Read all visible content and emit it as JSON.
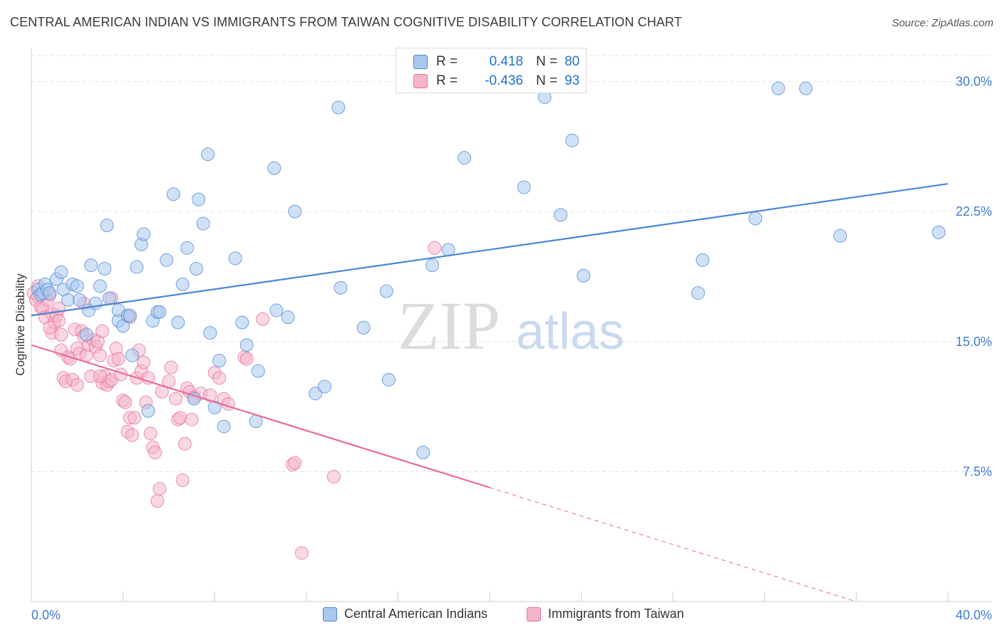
{
  "title": "CENTRAL AMERICAN INDIAN VS IMMIGRANTS FROM TAIWAN COGNITIVE DISABILITY CORRELATION CHART",
  "source": "Source: ZipAtlas.com",
  "watermark": {
    "zip": "ZIP",
    "atlas": "atlas"
  },
  "stats": {
    "r_label": "R =",
    "n_label": "N =",
    "blue": {
      "r": "0.418",
      "n": "80"
    },
    "pink": {
      "r": "-0.436",
      "n": "93"
    }
  },
  "colors": {
    "blue": "#4a86d4",
    "blue_fill": "#aac8ee",
    "pink": "#e86c9a",
    "pink_fill": "#f4b6cc",
    "tick_text": "#3f7bd0",
    "grid": "#e3e3e3"
  },
  "chart_data": {
    "type": "scatter",
    "title": "CENTRAL AMERICAN INDIAN VS IMMIGRANTS FROM TAIWAN COGNITIVE DISABILITY CORRELATION CHART",
    "xlabel": "",
    "ylabel": "Cognitive Disability",
    "xlim": [
      0,
      40
    ],
    "ylim": [
      0,
      31.5
    ],
    "x_tick_labels": [
      "0.0%",
      "40.0%"
    ],
    "y_ticks": [
      7.5,
      15.0,
      22.5,
      30.0
    ],
    "y_tick_labels": [
      "7.5%",
      "15.0%",
      "22.5%",
      "30.0%"
    ],
    "grid": true,
    "legend_position": "bottom",
    "series": [
      {
        "name": "Central American Indians",
        "color": "#4a86d4",
        "trend": {
          "x0": 0,
          "y0": 16.5,
          "x1": 40,
          "y1": 24.1,
          "dashed_from": null
        },
        "points": [
          [
            0.3,
            18.0
          ],
          [
            0.4,
            17.7
          ],
          [
            0.5,
            17.8
          ],
          [
            0.6,
            18.3
          ],
          [
            0.7,
            18.0
          ],
          [
            0.8,
            17.8
          ],
          [
            1.1,
            18.6
          ],
          [
            1.3,
            19.0
          ],
          [
            1.4,
            18.0
          ],
          [
            1.6,
            17.4
          ],
          [
            1.8,
            18.3
          ],
          [
            2.0,
            18.2
          ],
          [
            2.1,
            17.4
          ],
          [
            2.4,
            15.4
          ],
          [
            2.5,
            16.8
          ],
          [
            2.6,
            19.4
          ],
          [
            2.8,
            17.2
          ],
          [
            3.0,
            18.2
          ],
          [
            3.2,
            19.2
          ],
          [
            3.4,
            17.5
          ],
          [
            3.3,
            21.7
          ],
          [
            3.8,
            16.2
          ],
          [
            3.8,
            16.8
          ],
          [
            4.0,
            15.9
          ],
          [
            4.2,
            16.5
          ],
          [
            4.3,
            16.5
          ],
          [
            4.4,
            14.2
          ],
          [
            4.6,
            19.3
          ],
          [
            4.8,
            20.6
          ],
          [
            4.9,
            21.2
          ],
          [
            5.1,
            11.0
          ],
          [
            5.3,
            16.2
          ],
          [
            5.5,
            16.7
          ],
          [
            5.6,
            16.7
          ],
          [
            5.9,
            19.7
          ],
          [
            6.2,
            23.5
          ],
          [
            6.4,
            16.1
          ],
          [
            6.6,
            18.3
          ],
          [
            6.8,
            20.4
          ],
          [
            7.1,
            11.7
          ],
          [
            7.2,
            19.2
          ],
          [
            7.3,
            23.2
          ],
          [
            7.5,
            21.8
          ],
          [
            7.7,
            25.8
          ],
          [
            7.8,
            15.5
          ],
          [
            8.0,
            11.2
          ],
          [
            8.2,
            13.9
          ],
          [
            8.4,
            10.1
          ],
          [
            8.9,
            19.8
          ],
          [
            9.2,
            16.1
          ],
          [
            9.4,
            14.8
          ],
          [
            9.9,
            13.3
          ],
          [
            9.8,
            10.4
          ],
          [
            10.6,
            25.0
          ],
          [
            10.7,
            16.8
          ],
          [
            11.2,
            16.4
          ],
          [
            11.5,
            22.5
          ],
          [
            12.4,
            12.0
          ],
          [
            12.8,
            12.4
          ],
          [
            13.4,
            28.5
          ],
          [
            13.5,
            18.1
          ],
          [
            14.5,
            15.8
          ],
          [
            15.5,
            17.9
          ],
          [
            15.6,
            12.8
          ],
          [
            17.1,
            8.6
          ],
          [
            17.5,
            19.4
          ],
          [
            18.2,
            20.3
          ],
          [
            18.9,
            25.6
          ],
          [
            21.5,
            23.9
          ],
          [
            22.4,
            29.1
          ],
          [
            23.1,
            22.3
          ],
          [
            23.6,
            26.6
          ],
          [
            24.1,
            18.8
          ],
          [
            29.1,
            17.8
          ],
          [
            29.3,
            19.7
          ],
          [
            31.6,
            22.1
          ],
          [
            32.6,
            29.6
          ],
          [
            33.8,
            29.6
          ],
          [
            35.3,
            21.1
          ],
          [
            39.6,
            21.3
          ]
        ]
      },
      {
        "name": "Immigrants from Taiwan",
        "color": "#e86c9a",
        "trend": {
          "x0": 0,
          "y0": 14.8,
          "x1": 36,
          "y1": 0.0,
          "dashed_from": 20
        },
        "points": [
          [
            0.1,
            17.8
          ],
          [
            0.2,
            17.4
          ],
          [
            0.3,
            17.6
          ],
          [
            0.3,
            18.2
          ],
          [
            0.4,
            17.0
          ],
          [
            0.5,
            16.9
          ],
          [
            0.6,
            16.4
          ],
          [
            0.7,
            17.4
          ],
          [
            0.8,
            17.7
          ],
          [
            0.9,
            16.6
          ],
          [
            0.9,
            15.5
          ],
          [
            1.0,
            16.1
          ],
          [
            1.1,
            16.5
          ],
          [
            1.2,
            16.2
          ],
          [
            1.3,
            15.4
          ],
          [
            1.3,
            14.5
          ],
          [
            1.4,
            12.9
          ],
          [
            1.5,
            12.7
          ],
          [
            1.6,
            14.1
          ],
          [
            1.7,
            14.0
          ],
          [
            1.8,
            12.8
          ],
          [
            1.9,
            15.7
          ],
          [
            2.0,
            14.6
          ],
          [
            2.0,
            12.5
          ],
          [
            2.1,
            14.3
          ],
          [
            2.2,
            15.6
          ],
          [
            2.3,
            15.3
          ],
          [
            2.4,
            14.2
          ],
          [
            2.5,
            14.8
          ],
          [
            2.6,
            13.0
          ],
          [
            2.7,
            15.1
          ],
          [
            2.8,
            14.7
          ],
          [
            2.9,
            15.0
          ],
          [
            3.0,
            14.2
          ],
          [
            3.1,
            15.6
          ],
          [
            3.1,
            12.6
          ],
          [
            3.2,
            13.0
          ],
          [
            3.3,
            12.5
          ],
          [
            3.4,
            12.7
          ],
          [
            3.5,
            12.8
          ],
          [
            3.5,
            17.5
          ],
          [
            3.6,
            13.9
          ],
          [
            3.7,
            14.6
          ],
          [
            3.8,
            14.0
          ],
          [
            3.9,
            13.1
          ],
          [
            4.0,
            11.6
          ],
          [
            4.1,
            11.5
          ],
          [
            4.2,
            9.8
          ],
          [
            4.3,
            10.6
          ],
          [
            4.4,
            9.6
          ],
          [
            4.5,
            10.6
          ],
          [
            4.6,
            12.9
          ],
          [
            4.7,
            14.5
          ],
          [
            4.8,
            13.3
          ],
          [
            4.9,
            13.8
          ],
          [
            5.0,
            11.5
          ],
          [
            5.1,
            12.9
          ],
          [
            5.2,
            9.7
          ],
          [
            5.3,
            8.9
          ],
          [
            5.4,
            8.6
          ],
          [
            5.5,
            5.8
          ],
          [
            5.6,
            6.5
          ],
          [
            5.7,
            12.1
          ],
          [
            6.0,
            12.7
          ],
          [
            6.1,
            13.5
          ],
          [
            6.3,
            11.7
          ],
          [
            6.4,
            10.5
          ],
          [
            6.5,
            10.6
          ],
          [
            6.6,
            7.0
          ],
          [
            6.7,
            9.1
          ],
          [
            6.8,
            12.3
          ],
          [
            6.9,
            12.1
          ],
          [
            7.0,
            10.5
          ],
          [
            7.1,
            11.8
          ],
          [
            7.4,
            12.0
          ],
          [
            7.8,
            11.9
          ],
          [
            8.0,
            13.2
          ],
          [
            8.2,
            12.9
          ],
          [
            8.4,
            11.7
          ],
          [
            8.6,
            11.4
          ],
          [
            9.3,
            14.1
          ],
          [
            9.4,
            14.0
          ],
          [
            10.1,
            16.3
          ],
          [
            11.4,
            7.9
          ],
          [
            11.5,
            8.0
          ],
          [
            11.8,
            2.8
          ],
          [
            13.2,
            7.2
          ],
          [
            17.6,
            20.4
          ],
          [
            3.0,
            13.0
          ],
          [
            4.3,
            16.4
          ],
          [
            0.8,
            15.8
          ],
          [
            1.2,
            16.9
          ],
          [
            2.3,
            17.2
          ]
        ]
      }
    ]
  }
}
